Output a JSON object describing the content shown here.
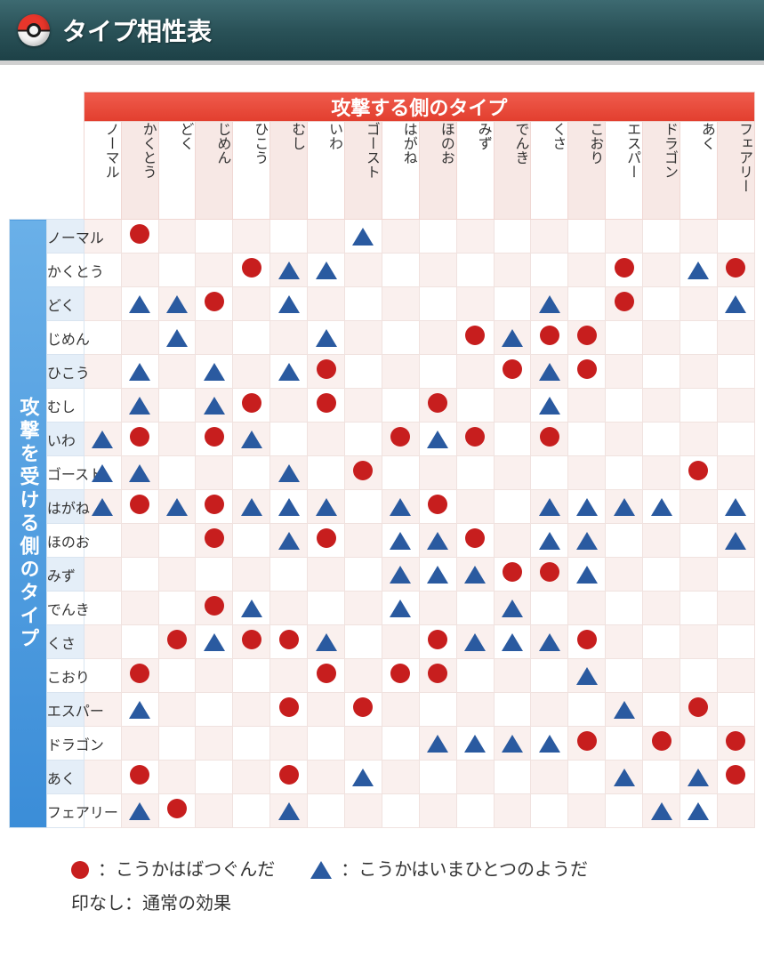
{
  "header": {
    "title": "タイプ相性表"
  },
  "chart": {
    "type": "table",
    "attacker_header": "攻撃する側のタイプ",
    "defender_header": "攻撃を受ける側のタイプ",
    "types": [
      "ノーマル",
      "かくとう",
      "どく",
      "じめん",
      "ひこう",
      "むし",
      "いわ",
      "ゴースト",
      "はがね",
      "ほのお",
      "みず",
      "でんき",
      "くさ",
      "こおり",
      "エスパー",
      "ドラゴン",
      "あく",
      "フェアリー"
    ],
    "symbols": {
      "circle": {
        "color": "#c71e1e",
        "meaning": "こうかはばつぐんだ"
      },
      "triangle": {
        "color": "#2a5aa0",
        "meaning": "こうかはいまひとつのようだ"
      },
      "none": {
        "meaning": "通常の効果"
      }
    },
    "matrix": [
      [
        "",
        "c",
        "",
        "",
        "",
        "",
        "",
        "t",
        "",
        "",
        "",
        "",
        "",
        "",
        "",
        "",
        "",
        ""
      ],
      [
        "",
        "",
        "",
        "",
        "c",
        "t",
        "t",
        "",
        "",
        "",
        "",
        "",
        "",
        "",
        "c",
        "",
        "t",
        "c"
      ],
      [
        "",
        "t",
        "t",
        "c",
        "",
        "t",
        "",
        "",
        "",
        "",
        "",
        "",
        "t",
        "",
        "c",
        "",
        "",
        "t"
      ],
      [
        "",
        "",
        "t",
        "",
        "",
        "",
        "t",
        "",
        "",
        "",
        "c",
        "t",
        "c",
        "c",
        "",
        "",
        "",
        ""
      ],
      [
        "",
        "t",
        "",
        "t",
        "",
        "t",
        "c",
        "",
        "",
        "",
        "",
        "c",
        "t",
        "c",
        "",
        "",
        "",
        ""
      ],
      [
        "",
        "t",
        "",
        "t",
        "c",
        "",
        "c",
        "",
        "",
        "c",
        "",
        "",
        "t",
        "",
        "",
        "",
        "",
        ""
      ],
      [
        "t",
        "c",
        "",
        "c",
        "t",
        "",
        "",
        "",
        "c",
        "t",
        "c",
        "",
        "c",
        "",
        "",
        "",
        "",
        ""
      ],
      [
        "t",
        "t",
        "",
        "",
        "",
        "t",
        "",
        "c",
        "",
        "",
        "",
        "",
        "",
        "",
        "",
        "",
        "c",
        ""
      ],
      [
        "t",
        "c",
        "t",
        "c",
        "t",
        "t",
        "t",
        "",
        "t",
        "c",
        "",
        "",
        "t",
        "t",
        "t",
        "t",
        "",
        "t"
      ],
      [
        "",
        "",
        "",
        "c",
        "",
        "t",
        "c",
        "",
        "t",
        "t",
        "c",
        "",
        "t",
        "t",
        "",
        "",
        "",
        "t"
      ],
      [
        "",
        "",
        "",
        "",
        "",
        "",
        "",
        "",
        "t",
        "t",
        "t",
        "c",
        "c",
        "t",
        "",
        "",
        "",
        ""
      ],
      [
        "",
        "",
        "",
        "c",
        "t",
        "",
        "",
        "",
        "t",
        "",
        "",
        "t",
        "",
        "",
        "",
        "",
        "",
        ""
      ],
      [
        "",
        "",
        "c",
        "t",
        "c",
        "c",
        "t",
        "",
        "",
        "c",
        "t",
        "t",
        "t",
        "c",
        "",
        "",
        "",
        ""
      ],
      [
        "",
        "c",
        "",
        "",
        "",
        "",
        "c",
        "",
        "c",
        "c",
        "",
        "",
        "",
        "t",
        "",
        "",
        "",
        ""
      ],
      [
        "",
        "t",
        "",
        "",
        "",
        "c",
        "",
        "c",
        "",
        "",
        "",
        "",
        "",
        "",
        "t",
        "",
        "c",
        ""
      ],
      [
        "",
        "",
        "",
        "",
        "",
        "",
        "",
        "",
        "",
        "t",
        "t",
        "t",
        "t",
        "c",
        "",
        "c",
        "",
        "c"
      ],
      [
        "",
        "c",
        "",
        "",
        "",
        "c",
        "",
        "t",
        "",
        "",
        "",
        "",
        "",
        "",
        "t",
        "",
        "t",
        "c"
      ],
      [
        "",
        "t",
        "c",
        "",
        "",
        "t",
        "",
        "",
        "",
        "",
        "",
        "",
        "",
        "",
        "",
        "t",
        "t",
        ""
      ]
    ],
    "column_header_bg_even": "#f7e8e5",
    "column_header_bg_odd": "#ffffff",
    "row_label_bg_even": "#e4eef8",
    "row_label_bg_odd": "#ffffff",
    "cell_bg_even": "#faf0ee",
    "cell_bg_odd": "#ffffff"
  },
  "legend": {
    "line1_prefix": "：",
    "line2_prefix": "印なし：",
    "circle_label": "こうかはばつぐんだ",
    "triangle_label": "こうかはいまひとつのようだ",
    "none_label": "通常の効果"
  }
}
